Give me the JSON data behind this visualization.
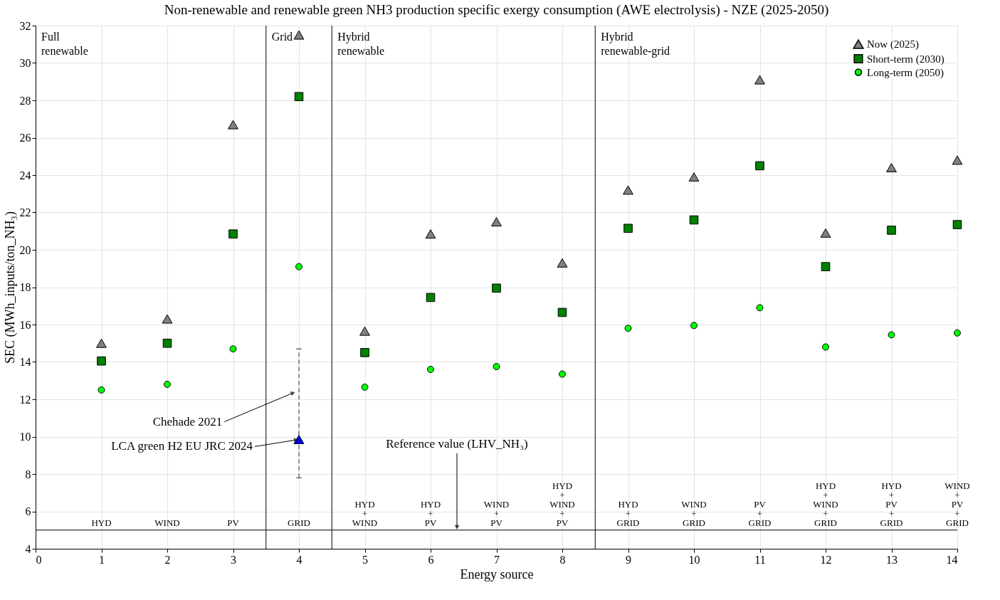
{
  "chart_data": {
    "type": "scatter",
    "title": "Non-renewable and renewable green NH3 production specific exergy consumption (AWE electrolysis) - NZE (2025-2050)",
    "xlabel": "Energy source",
    "ylabel": "SEC (MWh_inputs/ton_NH₃)",
    "x": [
      1,
      2,
      3,
      4,
      5,
      6,
      7,
      8,
      9,
      10,
      11,
      12,
      13,
      14
    ],
    "series": [
      {
        "name": "Now (2025)",
        "color": "#808080",
        "marker": "triangle",
        "values": [
          15.0,
          16.3,
          26.7,
          31.5,
          15.65,
          20.85,
          21.5,
          19.3,
          23.2,
          23.9,
          29.1,
          20.9,
          24.4,
          24.8
        ]
      },
      {
        "name": "Short-term (2030)",
        "color": "#008000",
        "marker": "square",
        "values": [
          14.05,
          15.0,
          20.85,
          28.2,
          14.5,
          17.45,
          17.95,
          16.65,
          21.15,
          21.6,
          24.5,
          19.1,
          21.05,
          21.35
        ]
      },
      {
        "name": "Long-term (2050)",
        "color": "#00ff00",
        "marker": "circle",
        "values": [
          12.5,
          12.8,
          14.7,
          19.1,
          12.65,
          13.6,
          13.75,
          13.35,
          15.8,
          15.95,
          16.9,
          14.8,
          15.45,
          15.55
        ]
      },
      {
        "name": "LCA green H2 EU JRC 2024",
        "color": "#0000ff",
        "marker": "triangle",
        "x": [
          4
        ],
        "values": [
          9.85
        ],
        "errors": [
          [
            7.8,
            14.7
          ]
        ]
      }
    ],
    "xlim": [
      0,
      14
    ],
    "ylim": [
      4,
      32
    ],
    "xticks": [
      0,
      1,
      2,
      3,
      4,
      5,
      6,
      7,
      8,
      9,
      10,
      11,
      12,
      13,
      14
    ],
    "yticks": [
      4,
      6,
      8,
      10,
      12,
      14,
      16,
      18,
      20,
      22,
      24,
      26,
      28,
      30,
      32
    ],
    "grid": true,
    "legend": "top right",
    "ref_lines": [
      {
        "axis": "x",
        "value": 3.5,
        "color": "#000000"
      },
      {
        "axis": "x",
        "value": 4.5,
        "color": "#000000"
      },
      {
        "axis": "x",
        "value": 8.5,
        "color": "#000000"
      },
      {
        "axis": "y",
        "value": 5,
        "color": "#000000",
        "label": "Reference value (LHV_NH₃)"
      }
    ],
    "annotations": [
      "Full\nrenewable",
      "Grid",
      "Hybrid\nrenewable",
      "Hybrid\nrenewable-grid",
      {
        "text": "Chehade 2021",
        "x": 3.95,
        "y": 12.4
      },
      {
        "text": "HYD",
        "x": 1,
        "y": 5.1
      },
      {
        "text": "WIND",
        "x": 2,
        "y": 5.1
      },
      {
        "text": "PV",
        "x": 3,
        "y": 5.1
      },
      {
        "text": "GRID",
        "x": 4,
        "y": 5.1
      },
      {
        "text": "HYD\n+\nWIND",
        "x": 5,
        "y": 5.1
      },
      {
        "text": "HYD\n+\nPV",
        "x": 6,
        "y": 5.1
      },
      {
        "text": "WIND\n+\nPV",
        "x": 7,
        "y": 5.1
      },
      {
        "text": "HYD\n+\nWIND\n+\nPV",
        "x": 8,
        "y": 5.1
      },
      {
        "text": "HYD\n+\nGRID",
        "x": 9,
        "y": 5.1
      },
      {
        "text": "WIND\n+\nGRID",
        "x": 10,
        "y": 5.1
      },
      {
        "text": "PV\n+\nGRID",
        "x": 11,
        "y": 5.1
      },
      {
        "text": "HYD\n+\nWIND\n+\nGRID",
        "x": 12,
        "y": 5.1
      },
      {
        "text": "HYD\n+\nPV\n+\nGRID",
        "x": 13,
        "y": 5.1
      },
      {
        "text": "WIND\n+\nPV\n+\nGRID",
        "x": 14,
        "y": 5.1
      }
    ]
  }
}
